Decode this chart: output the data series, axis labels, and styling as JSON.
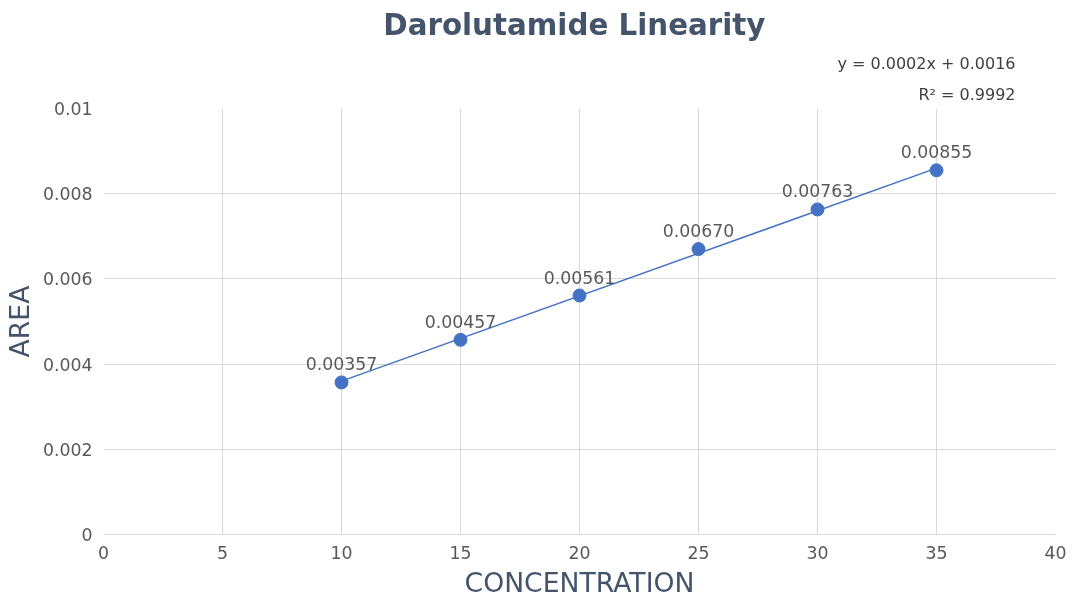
{
  "chart_data": {
    "type": "scatter",
    "title": "Darolutamide  Linearity",
    "xlabel": "CONCENTRATION",
    "ylabel": "AREA",
    "x": [
      10,
      15,
      20,
      25,
      30,
      35
    ],
    "series": [
      {
        "color": "#4472c4",
        "values": [
          0.00357,
          0.00457,
          0.00561,
          0.0067,
          0.00763,
          0.00855
        ],
        "value_labels": [
          "0.00357",
          "0.00457",
          "0.00561",
          "0.00670",
          "0.00763",
          "0.00855"
        ],
        "marker": "circle"
      },
      {
        "type": "line",
        "color": "#4472c4",
        "x": [
          10,
          35
        ],
        "values": [
          0.0036,
          0.0086
        ],
        "line_style": "solid"
      }
    ],
    "annotations": [
      "y = 0.0002x + 0.0016",
      "R² = 0.9992"
    ],
    "xlim": [
      0,
      40
    ],
    "xticks": [
      0,
      5,
      10,
      15,
      20,
      25,
      30,
      35,
      40
    ],
    "ylim": [
      0,
      0.01
    ],
    "yticks": [
      0,
      0.002,
      0.004,
      0.006,
      0.008,
      0.01
    ],
    "grid": true
  }
}
